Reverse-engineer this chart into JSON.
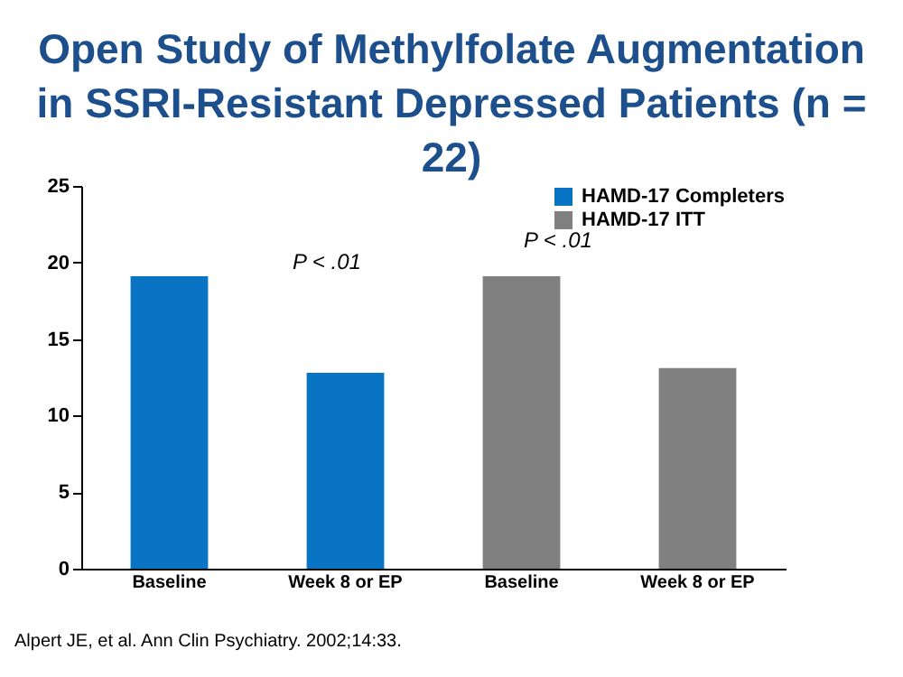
{
  "chart_data": {
    "type": "bar",
    "title": "Open Study of Methylfolate Augmentation in SSRI-Resistant Depressed Patients (n = 22)",
    "categories": [
      "Baseline",
      "Week 8 or EP",
      "Baseline",
      "Week 8 or EP"
    ],
    "series": [
      {
        "name": "HAMD-17 Completers",
        "color": "#0a74c4",
        "values": [
          19.1,
          12.8,
          null,
          null
        ]
      },
      {
        "name": "HAMD-17 ITT",
        "color": "#808080",
        "values": [
          null,
          null,
          19.1,
          13.1
        ]
      }
    ],
    "ylim": [
      0,
      25
    ],
    "yticks": [
      0,
      5,
      10,
      15,
      20,
      25
    ],
    "grid": false,
    "legend": "top right",
    "annotations": [
      "P < .01",
      "P < .01",
      "Alpert JE, et al. Ann Clin Psychiatry. 2002;14:33."
    ]
  }
}
